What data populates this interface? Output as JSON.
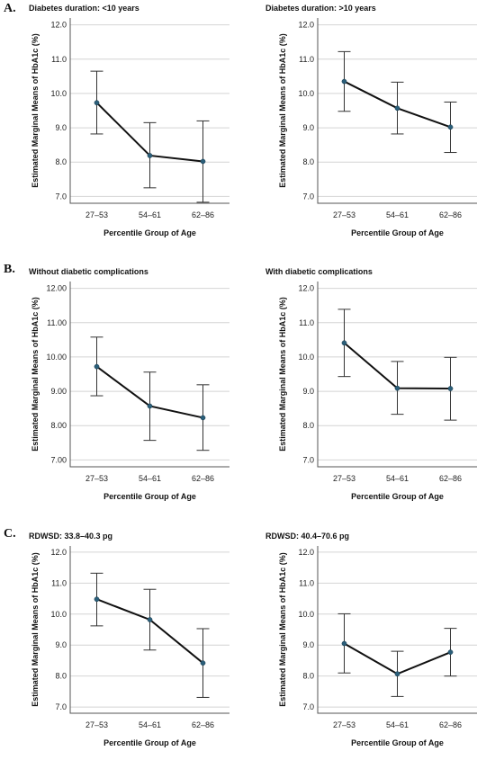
{
  "panel_letters": [
    "A.",
    "B.",
    "C."
  ],
  "chart_data": [
    {
      "type": "line",
      "title": "Diabetes duration: <10 years",
      "xlabel": "Percentile Group of Age",
      "ylabel": "Estimated Marginal Means of HbA1c (%)",
      "categories": [
        "27–53",
        "54–61",
        "62–86"
      ],
      "yticks": [
        "7.0",
        "8.0",
        "9.0",
        "10.0",
        "11.0",
        "12.0"
      ],
      "ylim": [
        6.8,
        12.2
      ],
      "grid": true,
      "series": [
        {
          "values": [
            9.73,
            8.19,
            8.02
          ],
          "lower": [
            8.82,
            7.25,
            6.83
          ],
          "upper": [
            10.65,
            9.15,
            9.2
          ]
        }
      ]
    },
    {
      "type": "line",
      "title": "Diabetes duration: >10 years",
      "xlabel": "Percentile Group of Age",
      "ylabel": "Estimated Marginal Means of HbA1c (%)",
      "categories": [
        "27–53",
        "54–61",
        "62–86"
      ],
      "yticks": [
        "7.0",
        "8.0",
        "9.0",
        "10.0",
        "11.0",
        "12.0"
      ],
      "ylim": [
        6.8,
        12.2
      ],
      "grid": true,
      "series": [
        {
          "values": [
            10.35,
            9.57,
            9.02
          ],
          "lower": [
            9.48,
            8.82,
            8.28
          ],
          "upper": [
            11.22,
            10.33,
            9.75
          ]
        }
      ]
    },
    {
      "type": "line",
      "title": "Without diabetic complications",
      "xlabel": "Percentile Group of Age",
      "ylabel": "Estimated Marginal Means of HbA1c (%)",
      "categories": [
        "27–53",
        "54–61",
        "62–86"
      ],
      "yticks": [
        "7.00",
        "8.00",
        "9.00",
        "10.00",
        "11.00",
        "12.00"
      ],
      "ylim": [
        6.8,
        12.2
      ],
      "grid": true,
      "series": [
        {
          "values": [
            9.72,
            8.57,
            8.23
          ],
          "lower": [
            8.87,
            7.57,
            7.28
          ],
          "upper": [
            10.58,
            9.56,
            9.19
          ]
        }
      ]
    },
    {
      "type": "line",
      "title": "With diabetic complications",
      "xlabel": "Percentile Group of Age",
      "ylabel": "Estimated Marginal Means of HbA1c (%)",
      "categories": [
        "27–53",
        "54–61",
        "62–86"
      ],
      "yticks": [
        "7.0",
        "8.0",
        "9.0",
        "10.0",
        "11.0",
        "12.0"
      ],
      "ylim": [
        6.8,
        12.2
      ],
      "grid": true,
      "series": [
        {
          "values": [
            10.41,
            9.09,
            9.08
          ],
          "lower": [
            9.43,
            8.33,
            8.16
          ],
          "upper": [
            11.39,
            9.87,
            9.99
          ]
        }
      ]
    },
    {
      "type": "line",
      "title": "RDWSD: 33.8–40.3 pg",
      "xlabel": "Percentile Group of Age",
      "ylabel": "Estimated Marginal Means of HbA1c (%)",
      "categories": [
        "27–53",
        "54–61",
        "62–86"
      ],
      "yticks": [
        "7.0",
        "8.0",
        "9.0",
        "10.0",
        "11.0",
        "12.0"
      ],
      "ylim": [
        6.8,
        12.2
      ],
      "grid": true,
      "series": [
        {
          "values": [
            10.48,
            9.82,
            8.42
          ],
          "lower": [
            9.62,
            8.84,
            7.31
          ],
          "upper": [
            11.32,
            10.8,
            9.53
          ]
        }
      ]
    },
    {
      "type": "line",
      "title": "RDWSD: 40.4–70.6 pg",
      "xlabel": "Percentile Group of Age",
      "ylabel": "Estimated Marginal Means of HbA1c (%)",
      "categories": [
        "27–53",
        "54–61",
        "62–86"
      ],
      "yticks": [
        "7.0",
        "8.0",
        "9.0",
        "10.0",
        "11.0",
        "12.0"
      ],
      "ylim": [
        6.8,
        12.2
      ],
      "grid": true,
      "series": [
        {
          "values": [
            9.05,
            8.07,
            8.77
          ],
          "lower": [
            8.1,
            7.34,
            8.0
          ],
          "upper": [
            10.01,
            8.8,
            9.54
          ]
        }
      ]
    }
  ]
}
